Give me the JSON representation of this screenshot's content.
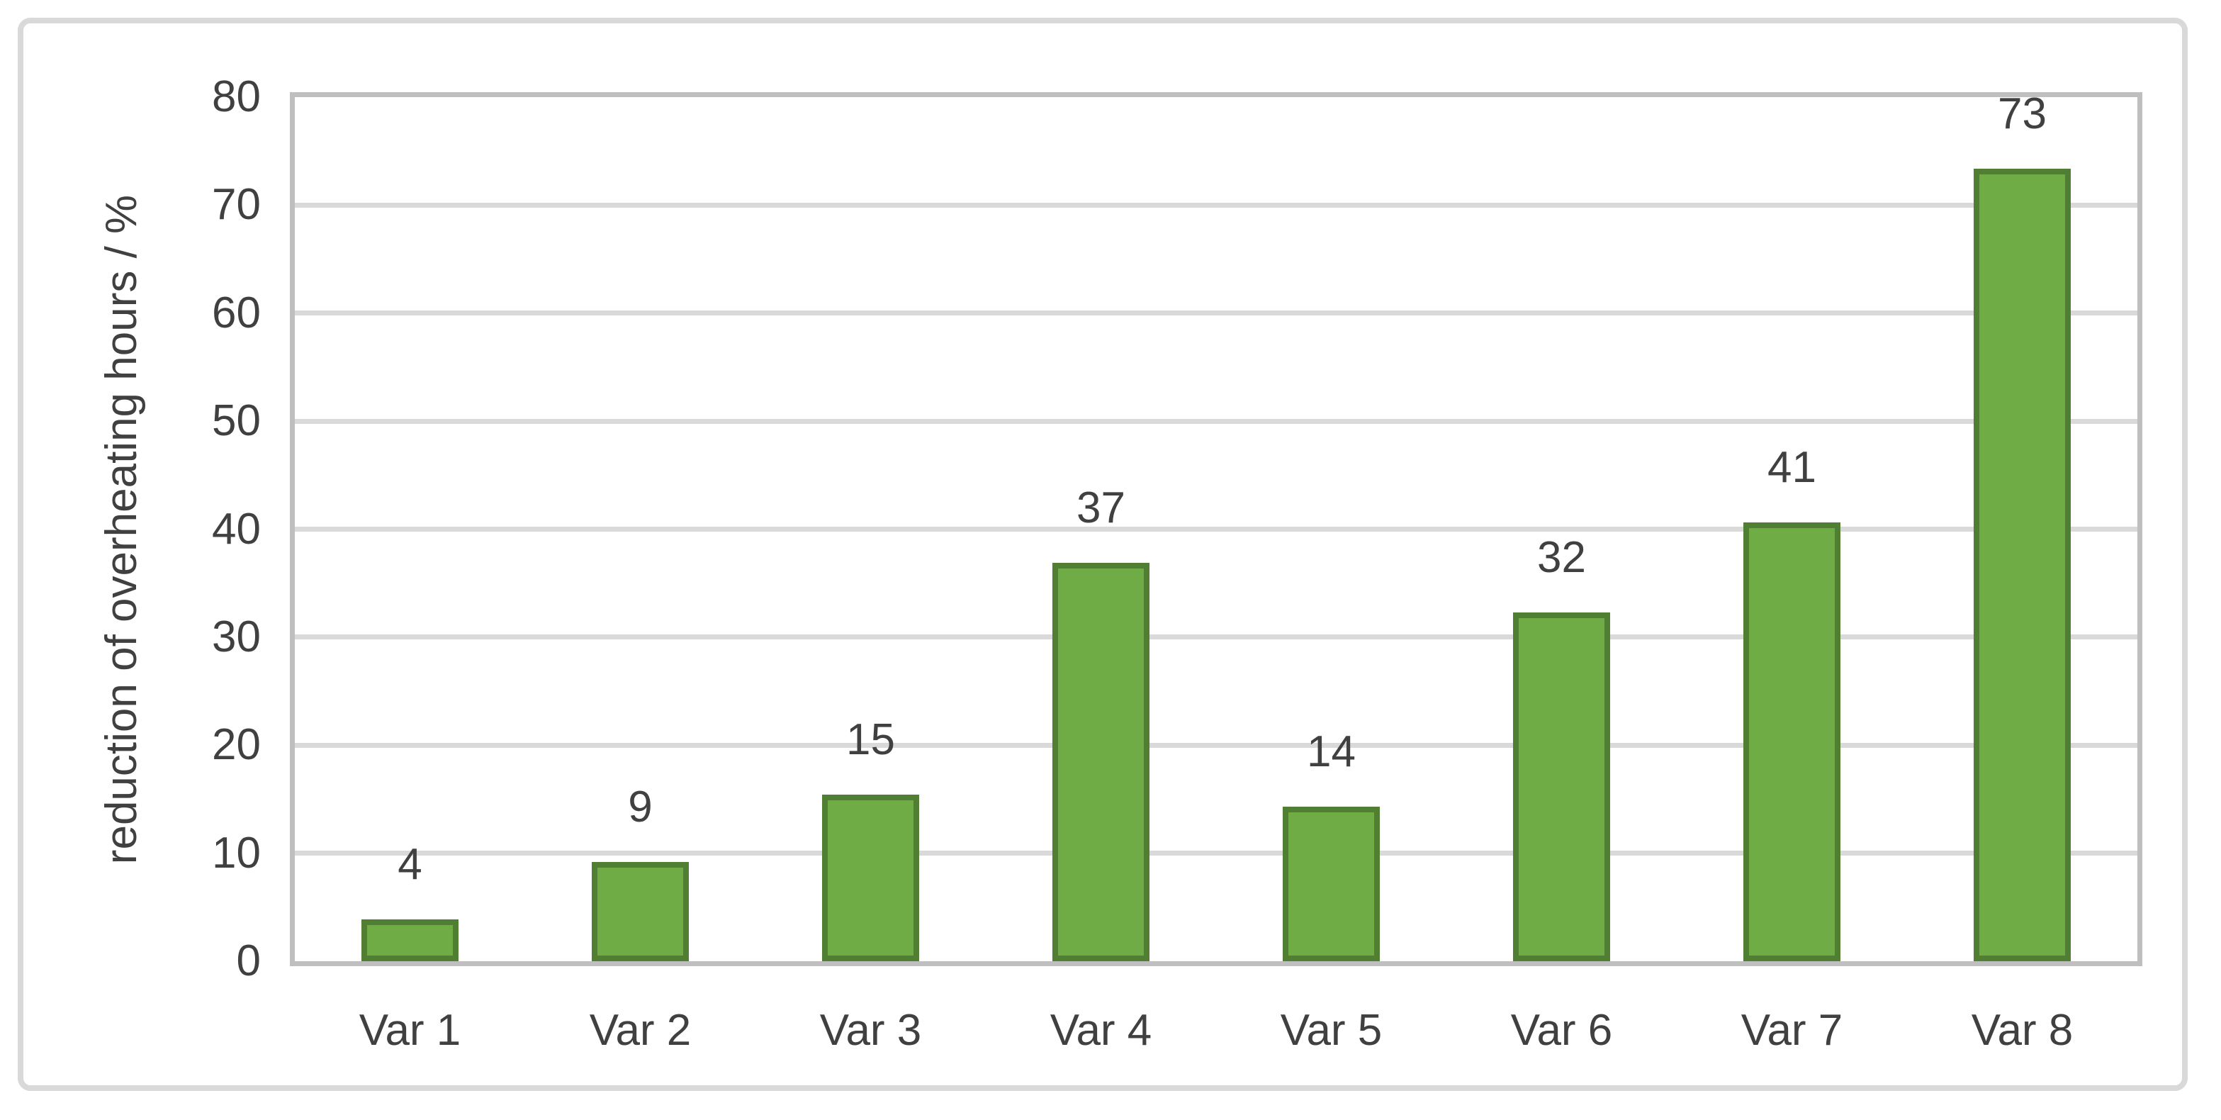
{
  "chart_data": {
    "type": "bar",
    "title": "",
    "xlabel": "",
    "ylabel": "reduction of overheating hours / %",
    "categories": [
      "Var 1",
      "Var 2",
      "Var 3",
      "Var 4",
      "Var 5",
      "Var 6",
      "Var 7",
      "Var 8"
    ],
    "values": [
      3.9,
      9.2,
      15.4,
      36.9,
      14.3,
      32.3,
      40.6,
      73.4
    ],
    "value_labels": [
      "4",
      "9",
      "15",
      "37",
      "14",
      "32",
      "41",
      "73"
    ],
    "y_ticks": [
      0,
      10,
      20,
      30,
      40,
      50,
      60,
      70,
      80
    ],
    "ylim": [
      0,
      80
    ],
    "grid": true,
    "legend": false,
    "colors": {
      "bar_fill": "#6FAC46",
      "bar_border": "#507E32",
      "gridline": "#D9D9D9",
      "plot_border": "#BFBFBF",
      "outer_frame": "#D9D9D9",
      "text": "#404040"
    }
  }
}
